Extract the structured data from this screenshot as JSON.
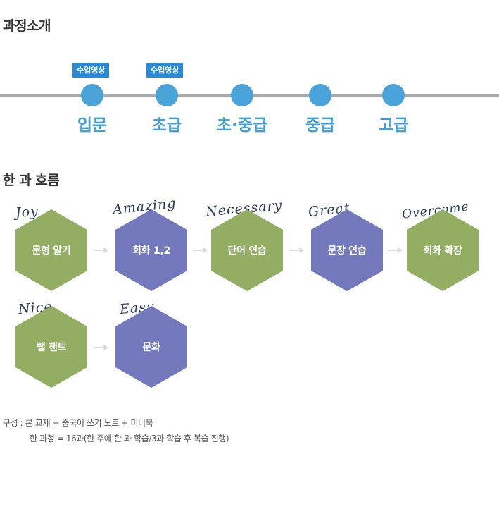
{
  "intro": {
    "title": "과정소개"
  },
  "timeline": {
    "badges": [
      "수업영상",
      "수업영상"
    ],
    "levels": [
      "입문",
      "초급",
      "초·중급",
      "중급",
      "고급"
    ]
  },
  "flow": {
    "title": "한 과 흐름",
    "steps": [
      {
        "word": "Joy",
        "label": "문형 알기",
        "color": "green"
      },
      {
        "word": "Amazing",
        "label": "회화 1,2",
        "color": "purple"
      },
      {
        "word": "Necessary",
        "label": "단어 연습",
        "color": "green"
      },
      {
        "word": "Great",
        "label": "문장 연습",
        "color": "purple"
      },
      {
        "word": "Overcome",
        "label": "회화 확장",
        "color": "green"
      },
      {
        "word": "Nice",
        "label": "랩 챈트",
        "color": "green"
      },
      {
        "word": "Easy",
        "label": "문화",
        "color": "purple"
      }
    ]
  },
  "notes": {
    "composition": "구성 : 본 교재 +  중국어 쓰기 노트 + 미니북",
    "sessions": "한 과정 = 16과(한 주에 한 과 학습/3과 학습 후 복습 진행)"
  },
  "colors": {
    "timeline_dot": "#4aa3d9",
    "badge": "#2a8ad8",
    "hex_green": "#93ad62",
    "hex_purple": "#7478bd"
  }
}
